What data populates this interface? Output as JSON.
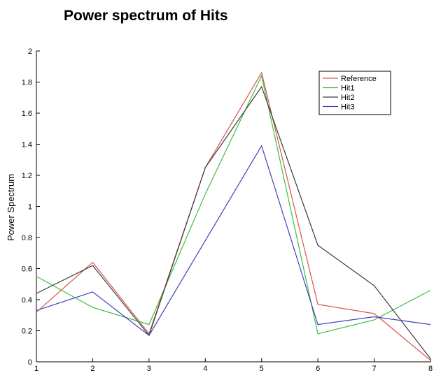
{
  "page": {
    "title": "Power spectrum of Hits"
  },
  "chart_data": {
    "type": "line",
    "title": "Power spectrum of Hits",
    "xlabel": "",
    "ylabel": "Power Spectrum",
    "x": [
      1,
      2,
      3,
      4,
      5,
      6,
      7,
      8
    ],
    "xlim": [
      1,
      8
    ],
    "ylim": [
      0,
      2
    ],
    "xticks": [
      "1",
      "2",
      "3",
      "4",
      "5",
      "6",
      "7",
      "8"
    ],
    "yticks": [
      "0",
      "0.2",
      "0.4",
      "0.6",
      "0.8",
      "1",
      "1.2",
      "1.4",
      "1.6",
      "1.8",
      "2"
    ],
    "grid": false,
    "legend_position": "top-right",
    "series": [
      {
        "name": "Reference",
        "color": "#d9534f",
        "values": [
          0.32,
          0.64,
          0.18,
          1.25,
          1.86,
          0.37,
          0.31,
          0.01
        ]
      },
      {
        "name": "Hit1",
        "color": "#3cbf3c",
        "values": [
          0.55,
          0.35,
          0.24,
          1.08,
          1.84,
          0.18,
          0.27,
          0.46
        ]
      },
      {
        "name": "Hit2",
        "color": "#3a3a3a",
        "values": [
          0.44,
          0.62,
          0.17,
          1.25,
          1.77,
          0.75,
          0.49,
          0.02
        ]
      },
      {
        "name": "Hit3",
        "color": "#4040c0",
        "values": [
          0.33,
          0.45,
          0.17,
          0.78,
          1.39,
          0.24,
          0.29,
          0.24
        ]
      }
    ]
  }
}
